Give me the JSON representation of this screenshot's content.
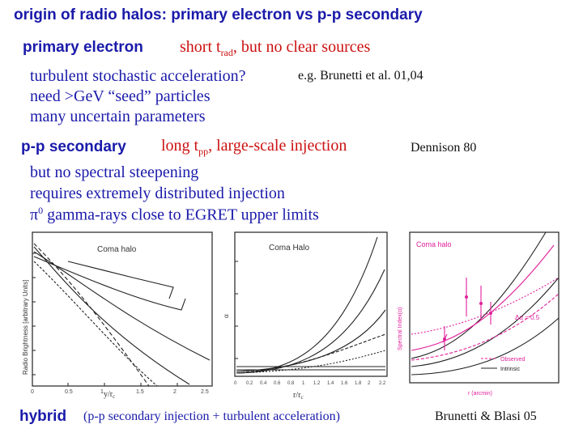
{
  "slide": {
    "title": "origin of radio halos: primary electron vs p-p secondary",
    "primary": {
      "heading": "primary electron",
      "claim_prefix": "short t",
      "claim_sub": "rad",
      "claim_suffix": ", but no clear sources",
      "bullet1": "turbulent stochastic acceleration?",
      "bullet1_ref": "e.g. Brunetti et al. 01,04",
      "bullet2": "need >GeV “seed” particles",
      "bullet3": "many uncertain parameters"
    },
    "secondary": {
      "heading": "p-p secondary",
      "claim_prefix": "long t",
      "claim_sub": "pp",
      "claim_suffix": ", large-scale injection",
      "ref": "Dennison 80",
      "bullet1": "but no spectral steepening",
      "bullet2": "requires extremely distributed injection",
      "bullet3_symbol": "π",
      "bullet3_sup": "0",
      "bullet3_text": " gamma-rays close to EGRET upper limits"
    },
    "hybrid": {
      "heading": "hybrid",
      "detail": "(p-p secondary injection + turbulent acceleration)",
      "ref": "Brunetti & Blasi 05"
    }
  },
  "figures": {
    "left": {
      "label": "Coma halo",
      "ylabel": "Radio Brightness [arbitrary Units]",
      "xlabel": "y/r",
      "xlabel_sub": "c",
      "xticks": [
        "0",
        "0.5",
        "1",
        "1.5",
        "2",
        "2.5"
      ]
    },
    "middle": {
      "label": "Coma Halo",
      "ylabel": "α",
      "xlabel": "r/r",
      "xlabel_sub": "c",
      "xticks": [
        "0",
        "0.2",
        "0.4",
        "0.6",
        "0.8",
        "1",
        "1.2",
        "1.4",
        "1.6",
        "1.8",
        "2",
        "2.2"
      ]
    },
    "right": {
      "label": "Coma halo",
      "ylabel": "Spectral Index(α)",
      "xlabel": "r (arcmin)",
      "legend_observed": "Observed",
      "legend_intrinsic": "Intrinsic",
      "annotation": "Δα = 0.5"
    }
  },
  "colors": {
    "title": "#1a1aaa",
    "accent_red": "#cc1111",
    "magenta": "#e0209a"
  }
}
